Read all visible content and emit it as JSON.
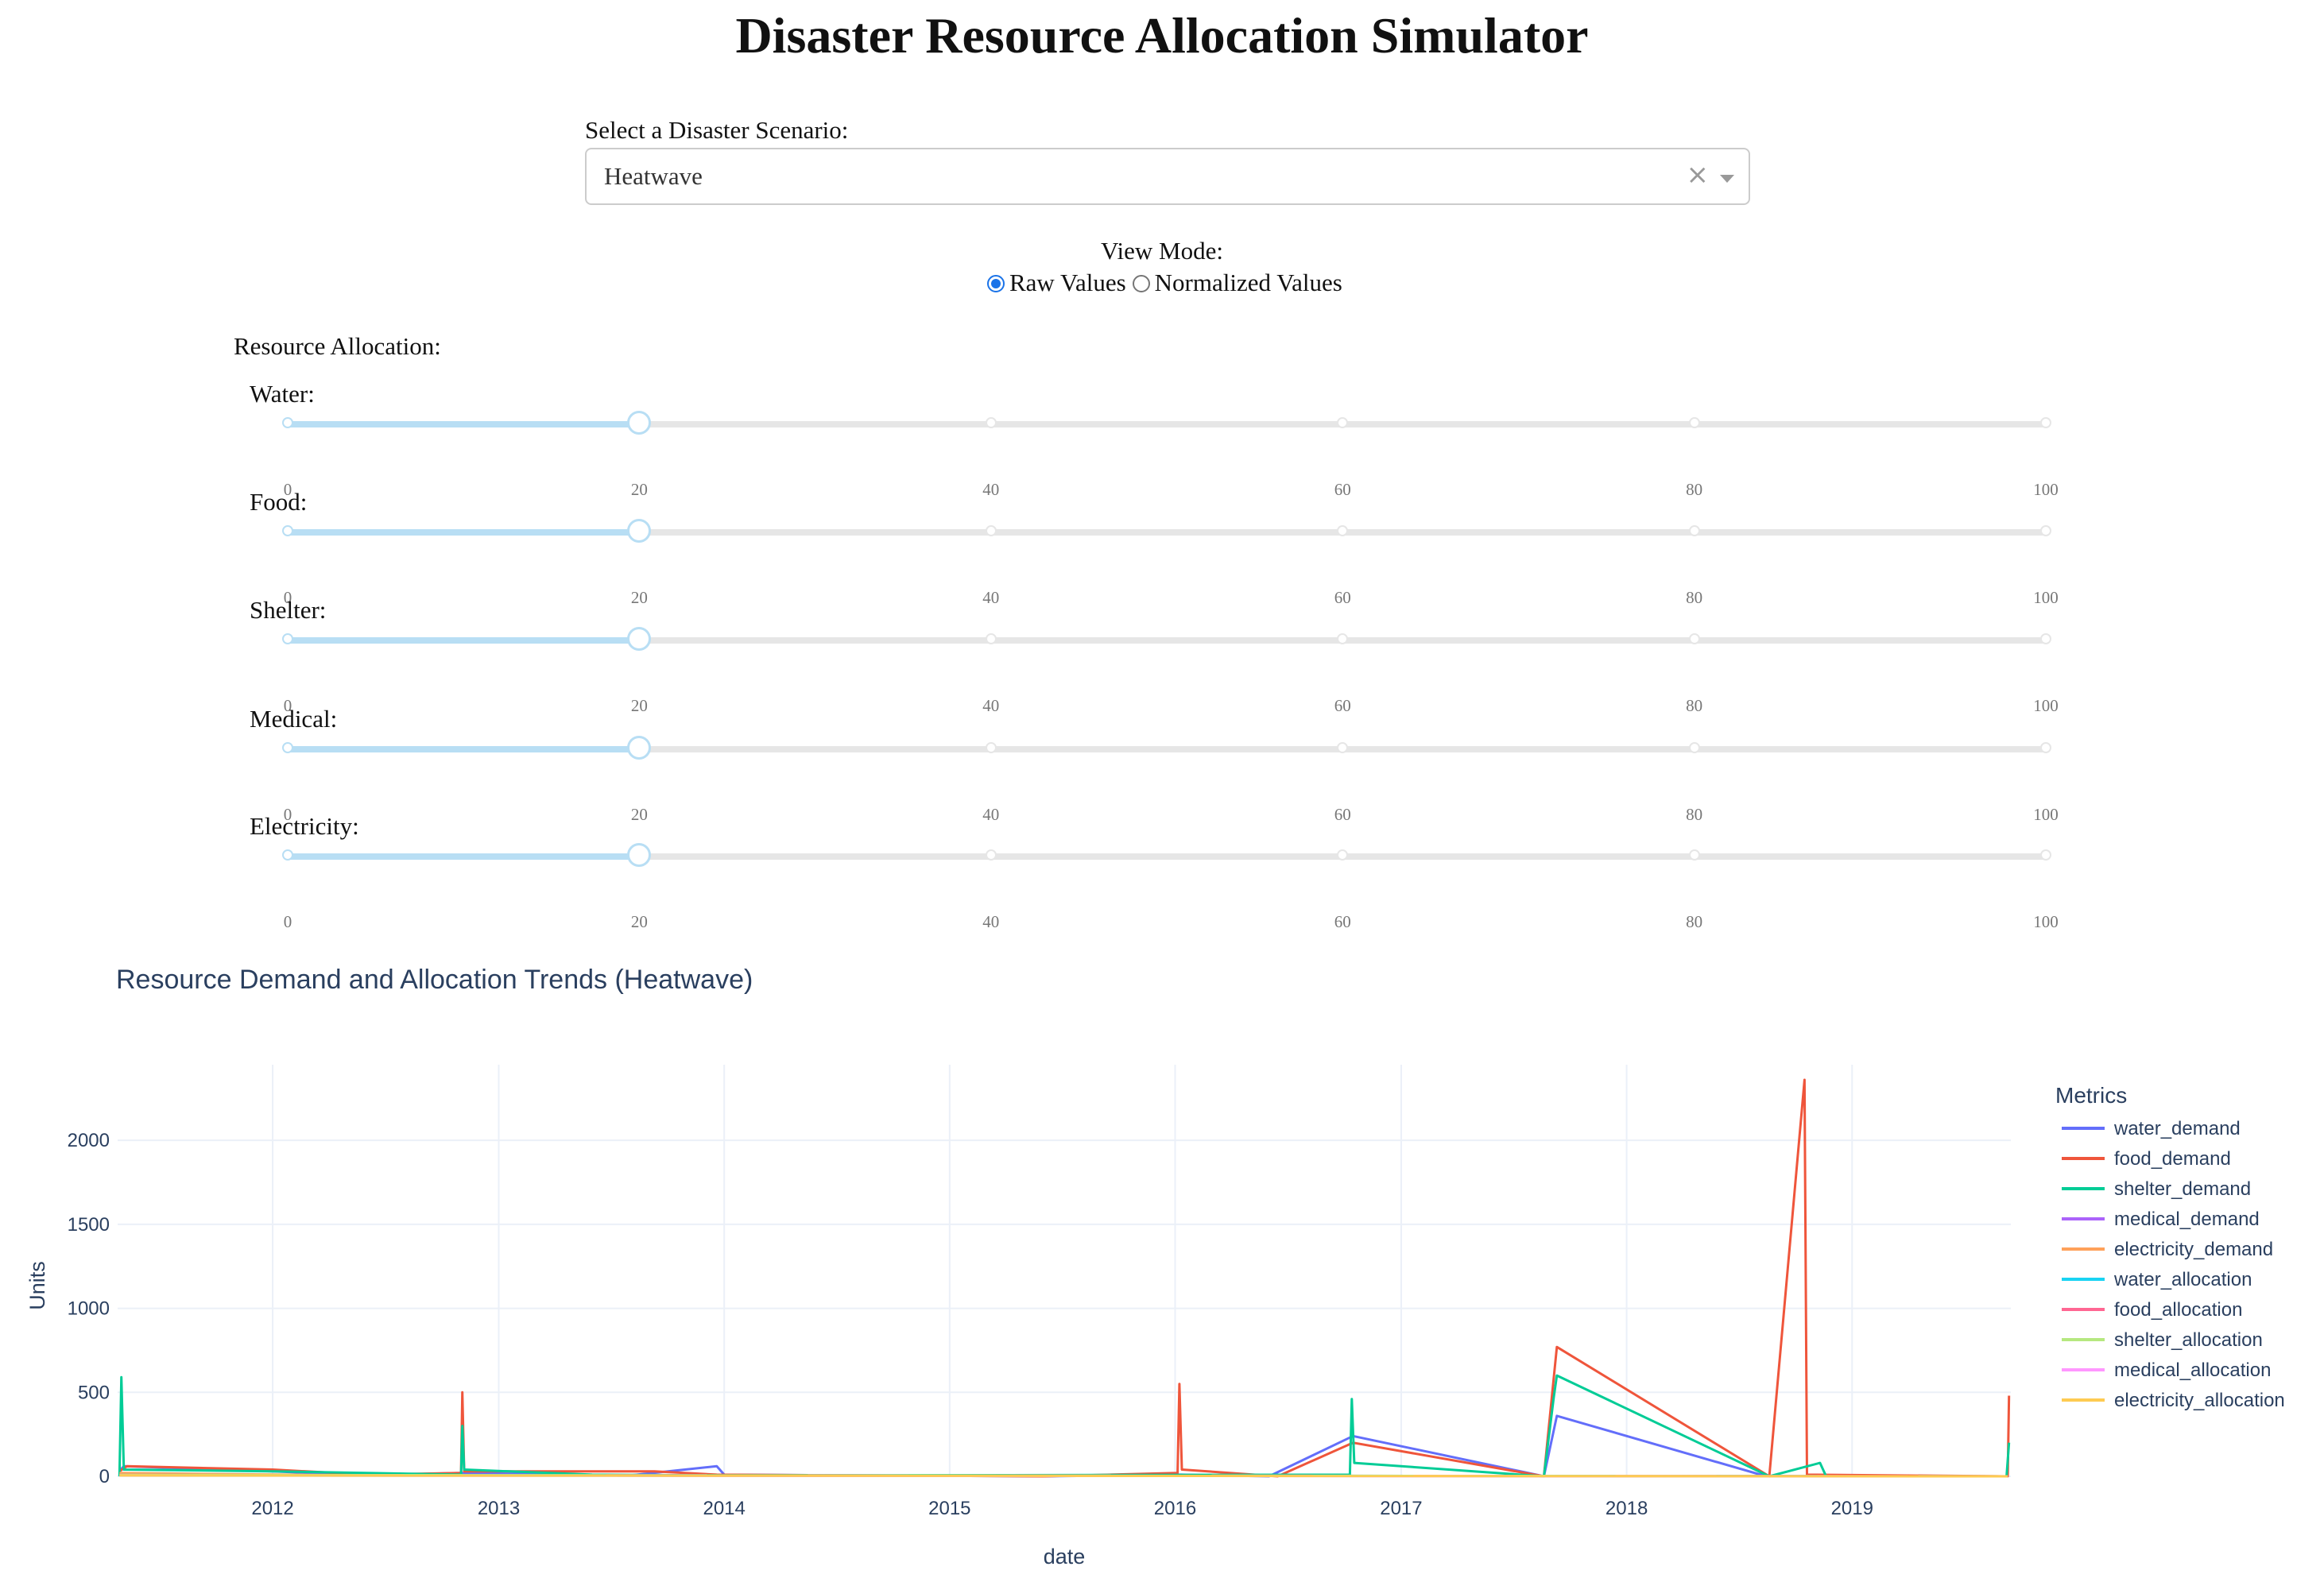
{
  "header": {
    "title": "Disaster Resource Allocation Simulator"
  },
  "scenario": {
    "label": "Select a Disaster Scenario:",
    "selected": "Heatwave",
    "clear_icon": "×"
  },
  "view_mode": {
    "label": "View Mode:",
    "options": [
      {
        "label": "Raw Values",
        "checked": true
      },
      {
        "label": "Normalized Values",
        "checked": false
      }
    ]
  },
  "allocation": {
    "label": "Resource Allocation:",
    "slider_min": 0,
    "slider_max": 100,
    "tick_values": [
      "0",
      "20",
      "40",
      "60",
      "80",
      "100"
    ],
    "sliders": [
      {
        "label": "Water:",
        "value": 20
      },
      {
        "label": "Food:",
        "value": 20
      },
      {
        "label": "Shelter:",
        "value": 20
      },
      {
        "label": "Medical:",
        "value": 20
      },
      {
        "label": "Electricity:",
        "value": 20
      }
    ]
  },
  "chart_data": {
    "type": "line",
    "title": "Resource Demand and Allocation Trends (Heatwave)",
    "xlabel": "date",
    "ylabel": "Units",
    "x_ticks": [
      "2012",
      "2013",
      "2014",
      "2015",
      "2016",
      "2017",
      "2018",
      "2019"
    ],
    "y_ticks": [
      "0",
      "500",
      "1000",
      "1500",
      "2000"
    ],
    "xlim": [
      "2011-04-25",
      "2019-09-15"
    ],
    "ylim": [
      0,
      2450
    ],
    "grid": true,
    "legend": {
      "title": "Metrics",
      "placement": "right"
    },
    "series": [
      {
        "name": "water_demand",
        "color": "#636efa",
        "points": [
          [
            "2011-04-30",
            40
          ],
          [
            "2011-05-05",
            60
          ],
          [
            "2012-01-01",
            30
          ],
          [
            "2012-06-01",
            5
          ],
          [
            "2012-11-01",
            20
          ],
          [
            "2013-08-01",
            5
          ],
          [
            "2013-12-20",
            60
          ],
          [
            "2014-01-01",
            10
          ],
          [
            "2015-06-01",
            0
          ],
          [
            "2016-01-10",
            10
          ],
          [
            "2016-06-01",
            0
          ],
          [
            "2016-10-15",
            240
          ],
          [
            "2017-08-20",
            0
          ],
          [
            "2017-09-10",
            360
          ],
          [
            "2018-08-15",
            0
          ],
          [
            "2019-09-10",
            0
          ]
        ]
      },
      {
        "name": "food_demand",
        "color": "#ef553b",
        "points": [
          [
            "2011-04-28",
            30
          ],
          [
            "2011-05-10",
            60
          ],
          [
            "2012-01-01",
            40
          ],
          [
            "2012-06-01",
            10
          ],
          [
            "2012-11-01",
            20
          ],
          [
            "2012-11-03",
            500
          ],
          [
            "2012-11-06",
            30
          ],
          [
            "2013-09-10",
            30
          ],
          [
            "2013-12-20",
            10
          ],
          [
            "2015-06-01",
            0
          ],
          [
            "2016-01-05",
            20
          ],
          [
            "2016-01-08",
            550
          ],
          [
            "2016-01-12",
            40
          ],
          [
            "2016-06-15",
            0
          ],
          [
            "2016-10-15",
            200
          ],
          [
            "2017-08-20",
            0
          ],
          [
            "2017-09-10",
            770
          ],
          [
            "2018-08-20",
            0
          ],
          [
            "2018-10-16",
            2360
          ],
          [
            "2018-10-20",
            10
          ],
          [
            "2019-09-10",
            0
          ],
          [
            "2019-09-12",
            480
          ]
        ]
      },
      {
        "name": "shelter_demand",
        "color": "#00cc96",
        "points": [
          [
            "2011-04-28",
            0
          ],
          [
            "2011-05-01",
            590
          ],
          [
            "2011-05-05",
            40
          ],
          [
            "2012-01-01",
            30
          ],
          [
            "2012-11-01",
            10
          ],
          [
            "2012-11-03",
            300
          ],
          [
            "2012-11-06",
            40
          ],
          [
            "2013-06-01",
            10
          ],
          [
            "2014-01-01",
            5
          ],
          [
            "2016-10-10",
            10
          ],
          [
            "2016-10-13",
            460
          ],
          [
            "2016-10-17",
            80
          ],
          [
            "2017-08-20",
            0
          ],
          [
            "2017-09-05",
            470
          ],
          [
            "2017-09-10",
            600
          ],
          [
            "2018-08-20",
            0
          ],
          [
            "2018-11-10",
            80
          ],
          [
            "2018-11-20",
            0
          ],
          [
            "2019-09-08",
            0
          ],
          [
            "2019-09-12",
            200
          ]
        ]
      },
      {
        "name": "medical_demand",
        "color": "#ab63fa",
        "points": [
          [
            "2011-04-28",
            10
          ],
          [
            "2012-06-01",
            5
          ],
          [
            "2019-09-10",
            0
          ]
        ]
      },
      {
        "name": "electricity_demand",
        "color": "#ffa15a",
        "points": [
          [
            "2011-04-28",
            20
          ],
          [
            "2012-06-01",
            5
          ],
          [
            "2019-09-10",
            0
          ]
        ]
      },
      {
        "name": "water_allocation",
        "color": "#19d3f3",
        "points": [
          [
            "2011-04-28",
            8
          ],
          [
            "2019-09-10",
            0
          ]
        ]
      },
      {
        "name": "food_allocation",
        "color": "#ff6692",
        "points": [
          [
            "2011-04-28",
            8
          ],
          [
            "2019-09-10",
            0
          ]
        ]
      },
      {
        "name": "shelter_allocation",
        "color": "#b6e880",
        "points": [
          [
            "2011-04-28",
            8
          ],
          [
            "2019-09-10",
            0
          ]
        ]
      },
      {
        "name": "medical_allocation",
        "color": "#ff97ff",
        "points": [
          [
            "2011-04-28",
            5
          ],
          [
            "2019-09-10",
            0
          ]
        ]
      },
      {
        "name": "electricity_allocation",
        "color": "#fecb52",
        "points": [
          [
            "2011-04-28",
            5
          ],
          [
            "2019-09-10",
            0
          ]
        ]
      }
    ]
  }
}
